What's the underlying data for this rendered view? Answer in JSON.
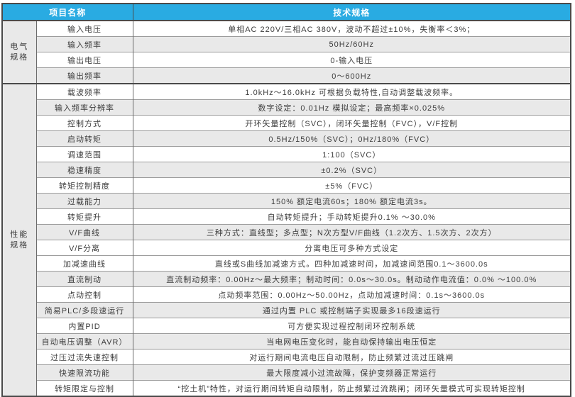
{
  "table": {
    "header": {
      "item_col": "项目名称",
      "spec_col": "技术规格"
    },
    "colors": {
      "header_bg": "#29abe2",
      "header_text": "#ffffff",
      "stripe": "#e9e9e9",
      "border_dark": "#4a4a4a",
      "border_mid": "#6b6b6b",
      "border_light": "#9c9c9c",
      "text": "#3d3d3d"
    },
    "sections": [
      {
        "group": "电气\n规格",
        "rows": [
          {
            "item": "输入电压",
            "spec": "单相AC 220V/三相AC 380V，波动不超过±10%，失衡率＜3%；",
            "shaded": false
          },
          {
            "item": "输入频率",
            "spec": "50Hz/60Hz",
            "shaded": true
          },
          {
            "item": "输出电压",
            "spec": "0-输入电压",
            "shaded": false
          },
          {
            "item": "输出频率",
            "spec": "0～600Hz",
            "shaded": true
          }
        ]
      },
      {
        "group": "性能\n规格",
        "rows": [
          {
            "item": "载波频率",
            "spec": "1.0kHz～16.0kHz 可根据负载特性,自动调整载波频率。",
            "shaded": false
          },
          {
            "item": "输入频率分辨率",
            "spec": "数字设定：0.01Hz 模拟设定；最高频率×0.025%",
            "shaded": true
          },
          {
            "item": "控制方式",
            "spec": "开环矢量控制（SVC），闭环矢量控制（FVC），V/F控制",
            "shaded": false
          },
          {
            "item": "启动转矩",
            "spec": "0.5Hz/150%（SVC）；0Hz/180%（FVC）",
            "shaded": true
          },
          {
            "item": "调速范围",
            "spec": "1:100（SVC）",
            "shaded": false
          },
          {
            "item": "稳速精度",
            "spec": "±0.2%（SVC）",
            "shaded": true
          },
          {
            "item": "转矩控制精度",
            "spec": "±5%（FVC）",
            "shaded": false
          },
          {
            "item": "过载能力",
            "spec": "150% 额定电流60s；180% 额定电流3s。",
            "shaded": true
          },
          {
            "item": "转矩提升",
            "spec": "自动转矩提升；手动转矩提升0.1% ～30.0%",
            "shaded": false
          },
          {
            "item": "V/F曲线",
            "spec": "三种方式：直线型；多点型；N次方型V/F曲线（1.2次方、1.5次方、2次方）",
            "shaded": true
          },
          {
            "item": "V/F分离",
            "spec": "分离电压可多种方式设定",
            "shaded": false
          },
          {
            "item": "加减速曲线",
            "spec": "直线或S曲线加减速方式。四种加减速时间，加减速间范围0.1～3600.0s",
            "shaded": false
          },
          {
            "item": "直流制动",
            "spec": "直流制动频率：0.00Hz～最大频率；制动时间：0.0s～30.0s。制动动作电流值：0.0% ～100.0%",
            "shaded": true
          },
          {
            "item": "点动控制",
            "spec": "点动频率范围：0.00Hz～50.00Hz，点动加减速时间：0.1s～3600.0s",
            "shaded": false
          },
          {
            "item": "简易PLC/多段速运行",
            "spec": "通过内置 PLC 或控制端子实现最多16段速运行",
            "shaded": true
          },
          {
            "item": "内置PID",
            "spec": "可方便实现过程控制闭环控制系统",
            "shaded": false
          },
          {
            "item": "自动电压调整（AVR）",
            "spec": "当电网电压变化时，能自动保持输出电压恒定",
            "shaded": true
          },
          {
            "item": "过压过流失速控制",
            "spec": "对运行期间电流电压自动限制，防止频繁过流过压跳闸",
            "shaded": false
          },
          {
            "item": "快速限流功能",
            "spec": "最大限度减小过流故障，保护变频器正常运行",
            "shaded": true
          },
          {
            "item": "转矩限定与控制",
            "spec": "“挖土机”特性，对运行期间转矩自动限制，防止频繁过流跳闸；闭环矢量模式可实现转矩控制",
            "shaded": false
          }
        ]
      }
    ]
  }
}
